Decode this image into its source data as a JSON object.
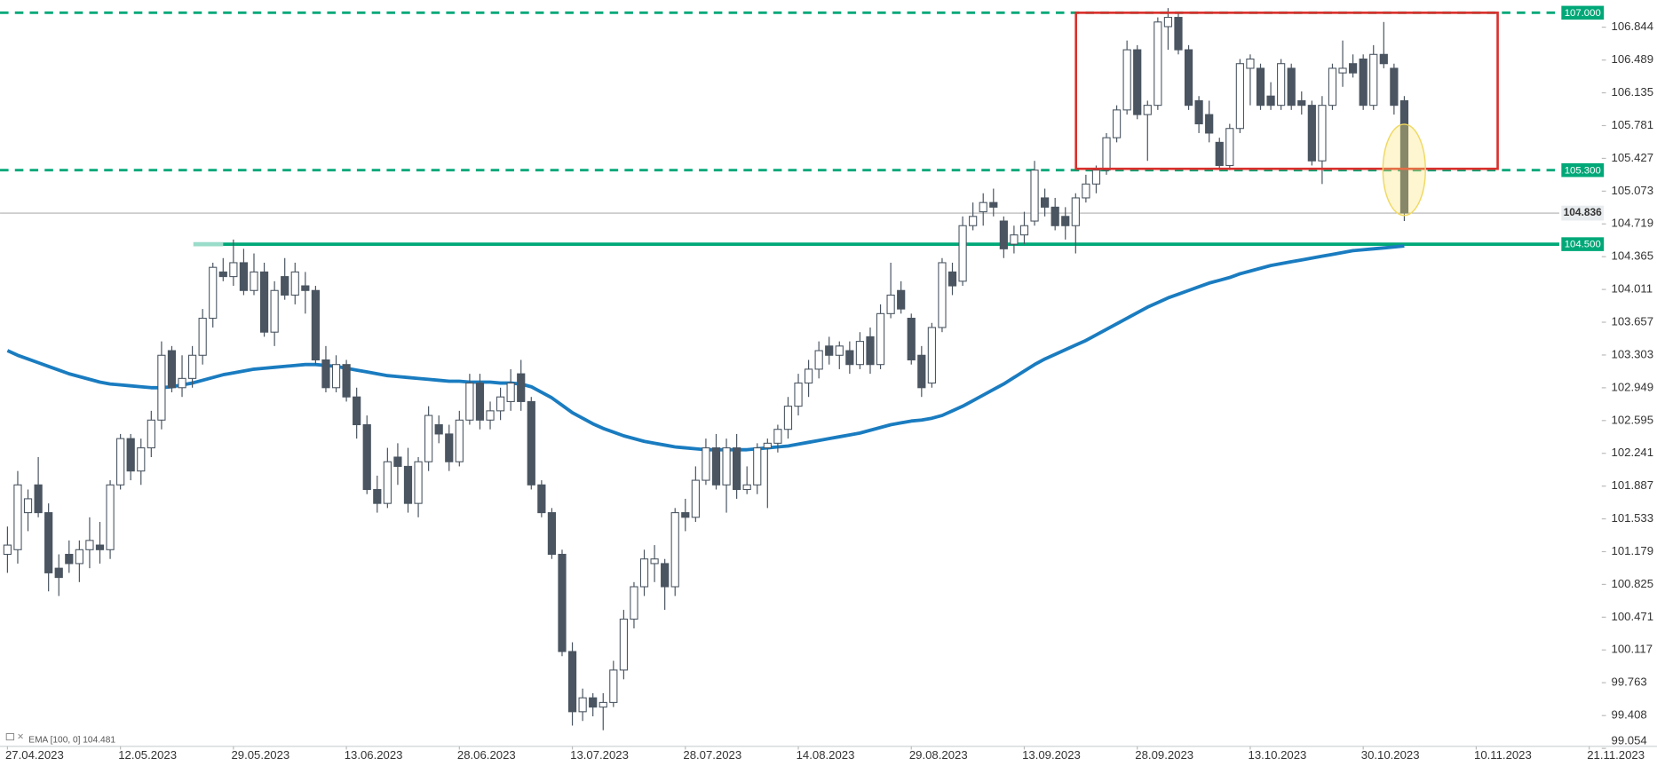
{
  "chart_data": {
    "type": "candlestick",
    "categories": [
      "27.04.2023",
      null,
      null,
      null,
      null,
      null,
      null,
      null,
      null,
      null,
      null,
      "12.05.2023",
      null,
      null,
      null,
      null,
      null,
      null,
      null,
      null,
      null,
      null,
      "29.05.2023",
      null,
      null,
      null,
      null,
      null,
      null,
      null,
      null,
      null,
      null,
      "13.06.2023",
      null,
      null,
      null,
      null,
      null,
      null,
      null,
      null,
      null,
      null,
      "28.06.2023",
      null,
      null,
      null,
      null,
      null,
      null,
      null,
      null,
      null,
      null,
      "13.07.2023",
      null,
      null,
      null,
      null,
      null,
      null,
      null,
      null,
      null,
      null,
      "28.07.2023",
      null,
      null,
      null,
      null,
      null,
      null,
      null,
      null,
      null,
      null,
      "14.08.2023",
      null,
      null,
      null,
      null,
      null,
      null,
      null,
      null,
      null,
      null,
      "29.08.2023",
      null,
      null,
      null,
      null,
      null,
      null,
      null,
      null,
      null,
      null,
      "13.09.2023",
      null,
      null,
      null,
      null,
      null,
      null,
      null,
      null,
      null,
      null,
      "28.09.2023",
      null,
      null,
      null,
      null,
      null,
      null,
      null,
      null,
      null,
      null,
      "13.10.2023",
      null,
      null,
      null,
      null,
      null,
      null,
      null,
      null,
      null,
      null,
      "30.10.2023",
      null,
      null,
      null,
      null,
      null,
      null,
      null,
      null,
      null,
      null,
      "10.11.2023",
      null,
      null,
      null,
      null,
      null,
      null,
      null,
      null,
      null,
      null,
      "21.11.2023"
    ],
    "open": [
      101.15,
      101.2,
      101.6,
      101.9,
      101.6,
      101.0,
      101.15,
      101.05,
      101.2,
      101.25,
      101.2,
      101.9,
      102.4,
      102.05,
      102.3,
      102.6,
      103.35,
      102.95,
      103.05,
      103.3,
      103.7,
      104.2,
      104.15,
      104.3,
      104.0,
      104.2,
      103.55,
      104.15,
      103.95,
      104.05,
      104.0,
      103.25,
      102.95,
      103.2,
      102.85,
      102.55,
      101.85,
      101.7,
      102.2,
      102.1,
      101.7,
      102.15,
      102.55,
      102.45,
      102.15,
      102.6,
      103.0,
      102.6,
      102.7,
      102.8,
      103.1,
      102.8,
      101.9,
      101.6,
      101.15,
      100.1,
      99.45,
      99.6,
      99.5,
      99.55,
      99.9,
      100.45,
      100.8,
      101.05,
      101.05,
      100.8,
      101.6,
      101.55,
      101.95,
      102.3,
      101.9,
      102.3,
      101.85,
      101.9,
      102.3,
      102.35,
      102.5,
      102.75,
      103.0,
      103.15,
      103.4,
      103.3,
      103.35,
      103.2,
      103.5,
      103.2,
      103.75,
      104.0,
      103.7,
      103.3,
      103.0,
      103.6,
      104.2,
      104.1,
      104.7,
      104.85,
      104.95,
      104.75,
      104.5,
      104.6,
      104.75,
      105.0,
      104.9,
      104.8,
      104.7,
      105.0,
      105.15,
      105.3,
      105.65,
      105.95,
      106.6,
      105.9,
      106.0,
      106.85,
      106.95,
      106.6,
      106.05,
      105.9,
      105.6,
      105.35,
      105.75,
      106.4,
      106.4,
      106.1,
      106.0,
      106.4,
      106.05,
      106.0,
      105.4,
      106.0,
      106.35,
      106.45,
      106.5,
      106.0,
      106.55,
      106.4,
      106.05,
      null,
      null,
      null,
      null,
      null,
      null,
      null,
      null,
      null,
      null,
      null,
      null,
      null,
      null,
      null,
      null,
      null,
      null
    ],
    "high": [
      101.45,
      102.05,
      101.85,
      102.2,
      101.7,
      101.15,
      101.3,
      101.3,
      101.55,
      101.5,
      101.95,
      102.45,
      102.45,
      102.4,
      102.7,
      103.45,
      103.4,
      103.3,
      103.4,
      103.8,
      104.3,
      104.35,
      104.55,
      104.45,
      104.4,
      104.3,
      104.1,
      104.35,
      104.3,
      104.2,
      104.05,
      103.4,
      103.3,
      103.25,
      102.95,
      102.65,
      102.0,
      102.3,
      102.35,
      102.3,
      102.2,
      102.75,
      102.65,
      102.55,
      102.7,
      103.1,
      103.1,
      102.8,
      102.95,
      103.15,
      103.25,
      102.85,
      101.95,
      101.65,
      101.2,
      100.2,
      99.7,
      99.65,
      99.65,
      100.0,
      100.55,
      100.85,
      101.2,
      101.25,
      101.1,
      101.65,
      101.75,
      102.1,
      102.4,
      102.45,
      102.4,
      102.45,
      102.1,
      102.35,
      102.4,
      102.55,
      102.85,
      103.1,
      103.25,
      103.45,
      103.5,
      103.45,
      103.45,
      103.55,
      103.6,
      103.85,
      104.3,
      104.1,
      103.75,
      103.4,
      103.65,
      104.35,
      104.3,
      104.8,
      104.95,
      105.05,
      105.1,
      104.8,
      104.7,
      104.85,
      105.4,
      105.1,
      105.0,
      104.9,
      105.05,
      105.25,
      105.35,
      105.7,
      106.0,
      106.7,
      106.65,
      106.05,
      106.95,
      107.05,
      107.0,
      106.65,
      106.1,
      106.05,
      105.65,
      105.8,
      106.5,
      106.55,
      106.45,
      106.25,
      106.5,
      106.45,
      106.15,
      106.05,
      106.1,
      106.45,
      106.7,
      106.55,
      106.55,
      106.65,
      106.9,
      106.45,
      106.1,
      null,
      null,
      null,
      null,
      null,
      null,
      null,
      null,
      null,
      null,
      null,
      null,
      null,
      null,
      null,
      null,
      null,
      null
    ],
    "low": [
      100.95,
      101.05,
      101.4,
      101.55,
      100.75,
      100.7,
      100.95,
      100.85,
      101.0,
      101.05,
      101.1,
      101.85,
      101.95,
      101.9,
      102.2,
      102.5,
      102.9,
      102.85,
      102.95,
      103.2,
      103.6,
      104.1,
      104.05,
      103.95,
      103.95,
      103.5,
      103.4,
      103.9,
      103.85,
      103.75,
      103.2,
      102.9,
      102.9,
      102.8,
      102.4,
      101.8,
      101.6,
      101.65,
      101.9,
      101.6,
      101.55,
      102.05,
      102.35,
      102.05,
      102.1,
      102.55,
      102.5,
      102.5,
      102.6,
      102.7,
      102.7,
      101.85,
      101.55,
      101.1,
      100.05,
      99.3,
      99.35,
      99.4,
      99.25,
      99.5,
      99.8,
      100.35,
      100.7,
      100.85,
      100.55,
      100.7,
      101.4,
      101.5,
      101.9,
      101.85,
      101.6,
      101.75,
      101.8,
      101.8,
      101.65,
      102.25,
      102.4,
      102.65,
      102.85,
      103.05,
      103.2,
      103.15,
      103.1,
      103.15,
      103.1,
      103.15,
      103.7,
      103.75,
      103.2,
      102.85,
      102.95,
      103.55,
      103.95,
      104.05,
      104.65,
      104.7,
      104.8,
      104.35,
      104.4,
      104.5,
      104.7,
      104.8,
      104.65,
      104.55,
      104.4,
      104.95,
      105.05,
      105.25,
      105.6,
      105.9,
      105.85,
      105.4,
      105.95,
      106.6,
      106.55,
      105.95,
      105.7,
      105.6,
      105.3,
      105.3,
      105.7,
      106.0,
      105.95,
      105.95,
      105.95,
      105.95,
      105.9,
      105.35,
      105.15,
      105.95,
      106.2,
      106.3,
      105.95,
      105.95,
      106.4,
      105.9,
      104.75,
      null,
      null,
      null,
      null,
      null,
      null,
      null,
      null,
      null,
      null,
      null,
      null,
      null,
      null,
      null,
      null,
      null,
      null
    ],
    "close": [
      101.25,
      101.9,
      101.75,
      101.6,
      100.95,
      100.9,
      101.05,
      101.2,
      101.3,
      101.2,
      101.9,
      102.4,
      102.05,
      102.3,
      102.6,
      103.3,
      102.95,
      103.05,
      103.3,
      103.7,
      104.25,
      104.15,
      104.3,
      104.0,
      104.2,
      103.55,
      104.0,
      103.95,
      104.2,
      104.0,
      103.25,
      102.95,
      103.2,
      102.85,
      102.55,
      101.85,
      101.7,
      102.15,
      102.1,
      101.7,
      102.15,
      102.65,
      102.45,
      102.15,
      102.6,
      103.0,
      102.6,
      102.7,
      102.85,
      103.0,
      102.8,
      101.9,
      101.6,
      101.15,
      100.1,
      99.45,
      99.6,
      99.5,
      99.55,
      99.9,
      100.45,
      100.8,
      101.1,
      101.1,
      100.8,
      101.6,
      101.55,
      101.95,
      102.3,
      101.9,
      102.3,
      101.85,
      101.9,
      102.3,
      102.35,
      102.5,
      102.75,
      103.0,
      103.15,
      103.35,
      103.3,
      103.4,
      103.2,
      103.45,
      103.2,
      103.75,
      103.95,
      103.8,
      103.25,
      102.95,
      103.6,
      104.3,
      104.05,
      104.7,
      104.8,
      104.95,
      104.9,
      104.45,
      104.6,
      104.7,
      105.3,
      104.9,
      104.7,
      104.7,
      105.0,
      105.15,
      105.3,
      105.65,
      105.95,
      106.6,
      105.9,
      106.0,
      106.9,
      106.95,
      106.6,
      106.0,
      105.8,
      105.7,
      105.35,
      105.75,
      106.45,
      106.5,
      106.0,
      106.0,
      106.45,
      106.0,
      106.0,
      105.4,
      106.0,
      106.4,
      106.4,
      106.35,
      106.0,
      106.55,
      106.45,
      106.0,
      104.836,
      null,
      null,
      null,
      null,
      null,
      null,
      null,
      null,
      null,
      null,
      null,
      null,
      null,
      null,
      null,
      null,
      null,
      null
    ],
    "colors": {
      "up": "#ffffff",
      "down": "#4a5561",
      "outline": "#4a5561"
    },
    "series": [
      {
        "name": "EMA [100, 0] 104.481",
        "color": "#1a7cc0",
        "values": [
          103.35,
          103.3,
          103.26,
          103.22,
          103.18,
          103.14,
          103.1,
          103.07,
          103.04,
          103.01,
          102.99,
          102.98,
          102.97,
          102.96,
          102.95,
          102.95,
          102.96,
          102.98,
          103.0,
          103.03,
          103.06,
          103.09,
          103.11,
          103.13,
          103.15,
          103.16,
          103.17,
          103.18,
          103.19,
          103.2,
          103.2,
          103.19,
          103.18,
          103.16,
          103.14,
          103.12,
          103.1,
          103.08,
          103.07,
          103.06,
          103.05,
          103.04,
          103.03,
          103.02,
          103.02,
          103.01,
          103.01,
          103.01,
          103.0,
          103.0,
          102.99,
          102.96,
          102.9,
          102.84,
          102.76,
          102.68,
          102.62,
          102.56,
          102.51,
          102.47,
          102.43,
          102.4,
          102.37,
          102.35,
          102.33,
          102.31,
          102.3,
          102.29,
          102.28,
          102.28,
          102.28,
          102.28,
          102.28,
          102.29,
          102.3,
          102.31,
          102.32,
          102.34,
          102.36,
          102.38,
          102.4,
          102.42,
          102.44,
          102.46,
          102.49,
          102.52,
          102.55,
          102.57,
          102.59,
          102.6,
          102.62,
          102.65,
          102.7,
          102.75,
          102.81,
          102.87,
          102.93,
          102.99,
          103.06,
          103.13,
          103.2,
          103.26,
          103.31,
          103.36,
          103.41,
          103.46,
          103.52,
          103.58,
          103.64,
          103.7,
          103.76,
          103.82,
          103.87,
          103.92,
          103.96,
          104.0,
          104.04,
          104.08,
          104.11,
          104.14,
          104.18,
          104.21,
          104.24,
          104.27,
          104.29,
          104.31,
          104.33,
          104.35,
          104.37,
          104.39,
          104.41,
          104.43,
          104.44,
          104.45,
          104.46,
          104.47,
          104.481,
          null,
          null,
          null,
          null,
          null,
          null,
          null,
          null,
          null,
          null,
          null,
          null,
          null,
          null,
          null,
          null,
          null,
          null
        ]
      }
    ],
    "ylim": [
      99.0,
      107.1376
    ],
    "yticks": [
      99.054,
      99.408,
      99.763,
      100.117,
      100.471,
      100.825,
      101.179,
      101.533,
      101.887,
      102.241,
      102.595,
      102.949,
      103.303,
      103.657,
      104.011,
      104.365,
      104.719,
      105.073,
      105.427,
      105.781,
      106.135,
      106.489,
      106.844
    ],
    "price_levels": [
      {
        "value": 107,
        "label": "107.000",
        "dashed": true
      },
      {
        "value": 105.3,
        "label": "105.300",
        "dashed": true
      },
      {
        "value": 104.5,
        "label": "104.500",
        "dashed": false
      }
    ],
    "level_color": "#00a878",
    "last_price": {
      "value": 104.836,
      "label": "104.836"
    }
  }
}
